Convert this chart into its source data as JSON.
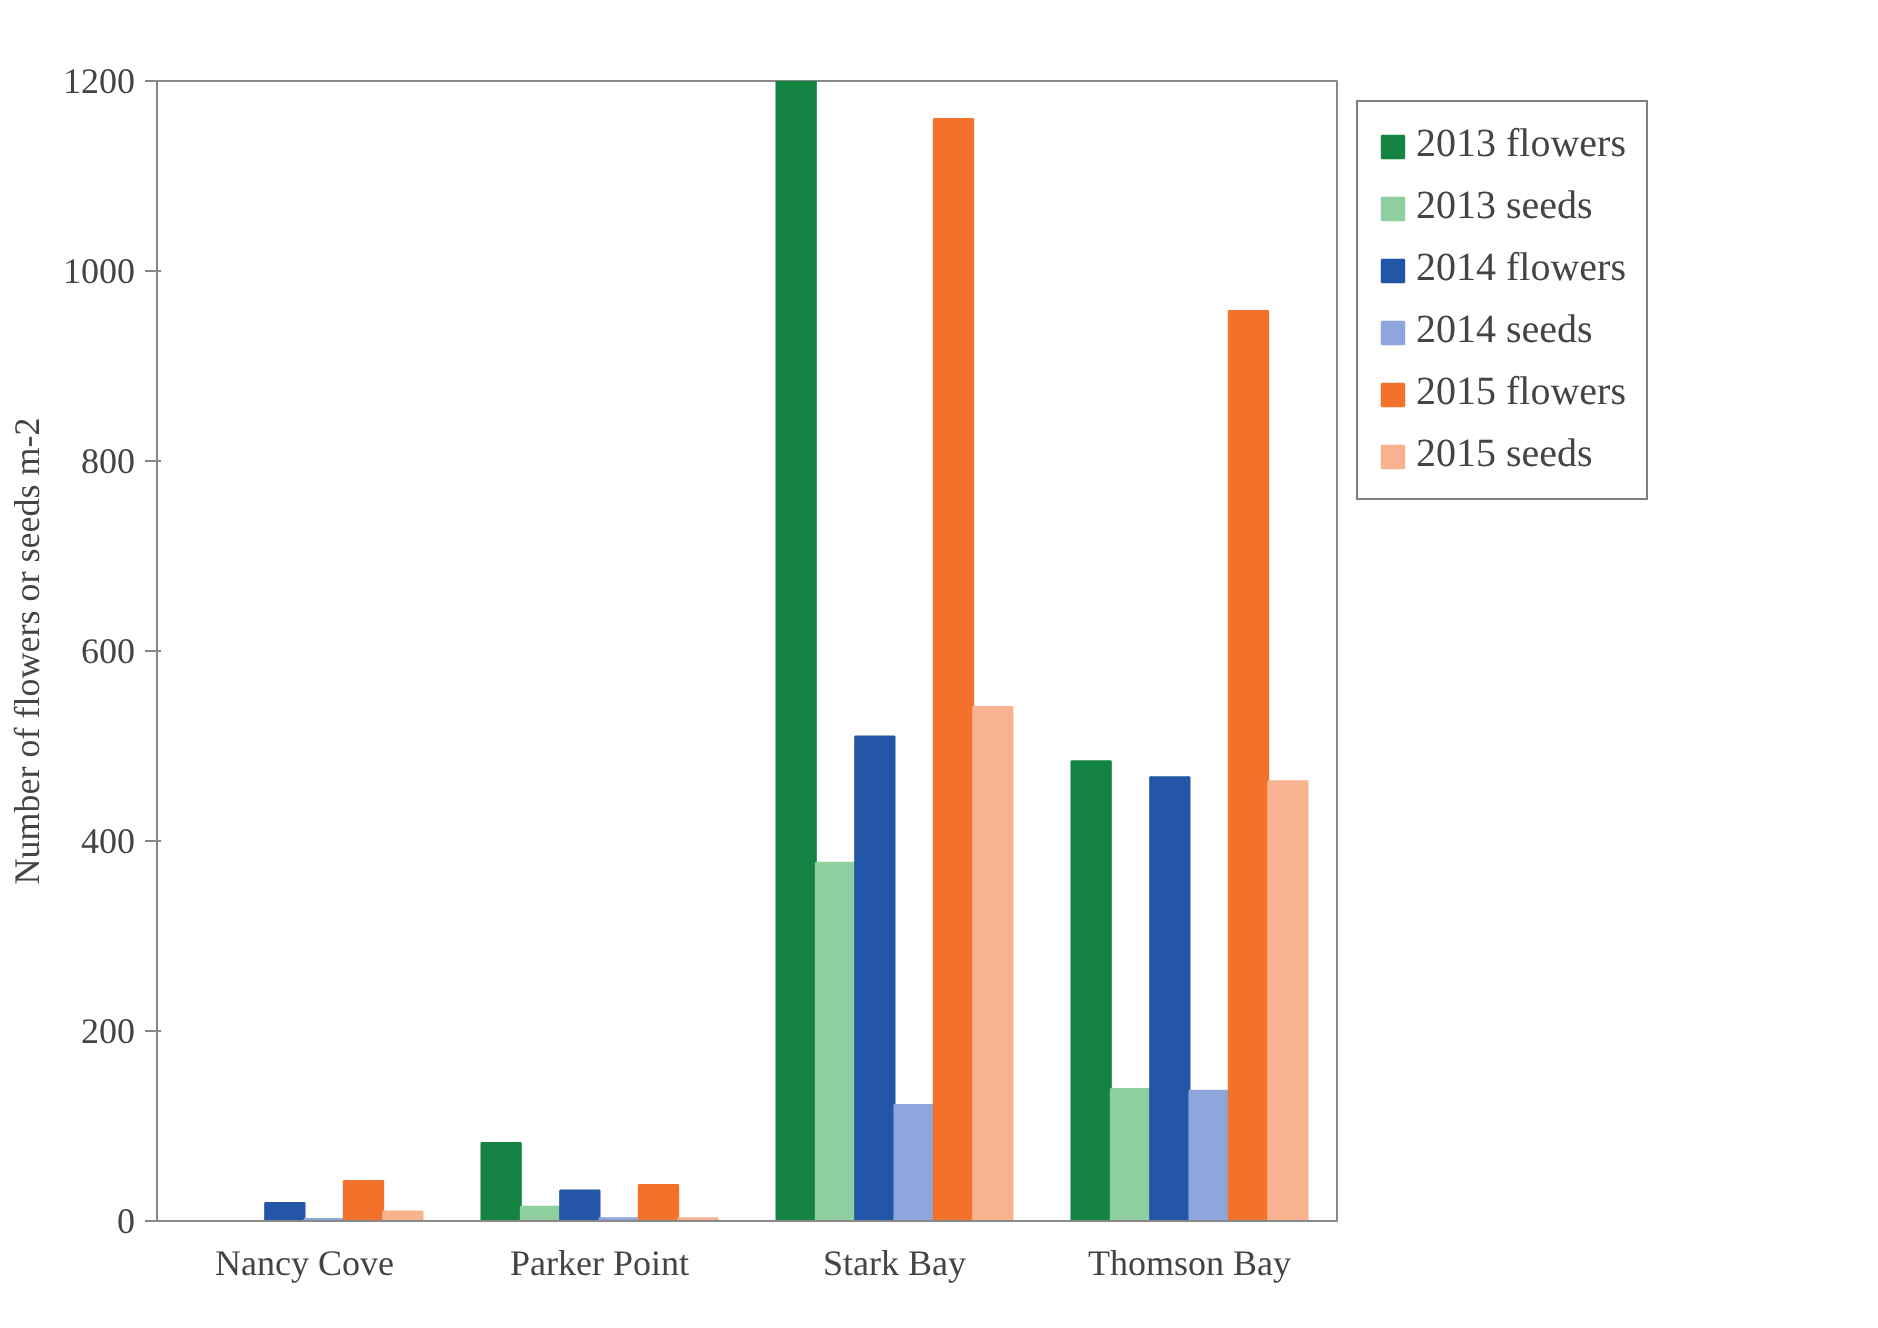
{
  "chart_data": {
    "type": "bar",
    "ylabel": "Number of flowers or seeds m-2",
    "categories": [
      "Nancy Cove",
      "Parker Point",
      "Stark Bay",
      "Thomson Bay"
    ],
    "series": [
      {
        "name": "2013 flowers",
        "color": "#158442",
        "values": [
          0,
          82,
          1200,
          484
        ]
      },
      {
        "name": "2013 seeds",
        "color": "#8fcf9f",
        "values": [
          0,
          15,
          377,
          139
        ]
      },
      {
        "name": "2014 flowers",
        "color": "#2356a6",
        "values": [
          19,
          32,
          510,
          467
        ]
      },
      {
        "name": "2014 seeds",
        "color": "#8fa6dc",
        "values": [
          2,
          3,
          122,
          137
        ]
      },
      {
        "name": "2015 flowers",
        "color": "#f3722b",
        "values": [
          42,
          38,
          1160,
          958
        ]
      },
      {
        "name": "2015 seeds",
        "color": "#f7b38f",
        "values": [
          10,
          3,
          541,
          463
        ]
      }
    ],
    "ylim": [
      0,
      1200
    ],
    "yticks": [
      0,
      200,
      400,
      600,
      800,
      1000,
      1200
    ],
    "grid": false,
    "legend": "top right"
  }
}
